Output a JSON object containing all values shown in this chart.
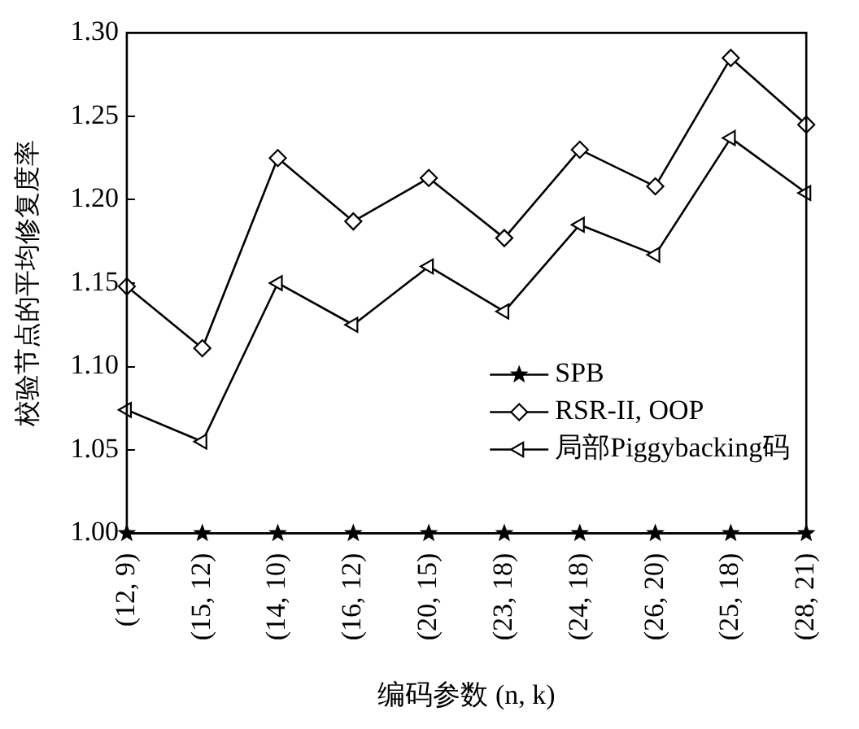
{
  "chart_data": {
    "type": "line",
    "xlabel": "编码参数 (n, k)",
    "ylabel": "校验节点的平均修复度率",
    "categories": [
      "(12, 9)",
      "(15, 12)",
      "(14, 10)",
      "(16, 12)",
      "(20, 15)",
      "(23, 18)",
      "(24, 18)",
      "(26, 20)",
      "(25, 18)",
      "(28, 21)"
    ],
    "series": [
      {
        "name": "SPB",
        "color": "#000000",
        "marker": "star",
        "values": [
          1.0,
          1.0,
          1.0,
          1.0,
          1.0,
          1.0,
          1.0,
          1.0,
          1.0,
          1.0
        ]
      },
      {
        "name": "RSR-II, OOP",
        "color": "#000000",
        "marker": "diamond",
        "values": [
          1.148,
          1.111,
          1.225,
          1.187,
          1.213,
          1.177,
          1.23,
          1.208,
          1.285,
          1.245
        ]
      },
      {
        "name": "局部Piggybacking码",
        "color": "#000000",
        "marker": "triangle",
        "values": [
          1.074,
          1.055,
          1.15,
          1.125,
          1.16,
          1.133,
          1.185,
          1.167,
          1.237,
          1.204
        ]
      }
    ],
    "ylim": [
      1.0,
      1.3
    ],
    "yticks": [
      {
        "value": 1.0,
        "label": "1.00"
      },
      {
        "value": 1.05,
        "label": "1.05"
      },
      {
        "value": 1.1,
        "label": "1.10"
      },
      {
        "value": 1.15,
        "label": "1.15"
      },
      {
        "value": 1.2,
        "label": "1.20"
      },
      {
        "value": 1.25,
        "label": "1.25"
      },
      {
        "value": 1.3,
        "label": "1.30"
      }
    ],
    "grid": false,
    "legend": "bottom right",
    "line_style": "solid"
  }
}
